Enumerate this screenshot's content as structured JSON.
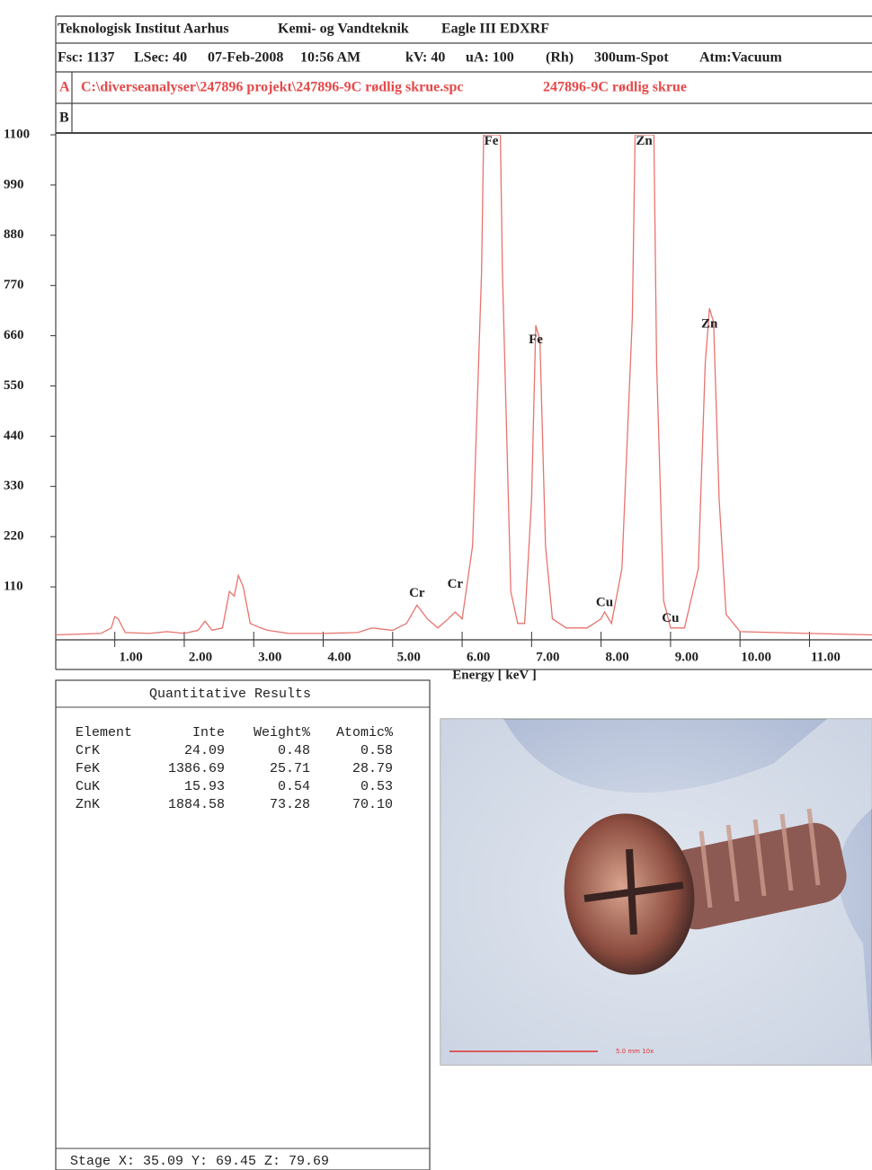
{
  "header": {
    "row1": [
      "Teknologisk Institut Aarhus",
      "Kemi- og Vandteknik",
      "Eagle III EDXRF"
    ],
    "row2": [
      "Fsc: 1137",
      "LSec: 40",
      "07-Feb-2008",
      "10:56 AM",
      "kV: 40",
      "uA: 100",
      "(Rh)",
      "300um-Spot",
      "Atm:Vacuum"
    ],
    "row3": {
      "tag": "A",
      "file": "C:\\diverseanalyser\\247896 projekt\\247896-9C rødlig skrue.spc",
      "sample": "247896-9C rødlig skrue"
    },
    "row4": {
      "tag": "B"
    }
  },
  "chart_data": {
    "type": "line",
    "x_label": "Energy [ keV ]",
    "color": "#e8736e",
    "x": [
      0.15,
      0.8,
      0.95,
      1.0,
      1.05,
      1.15,
      1.5,
      1.75,
      2.0,
      2.2,
      2.3,
      2.4,
      2.55,
      2.65,
      2.72,
      2.78,
      2.85,
      2.95,
      3.1,
      3.2,
      3.5,
      4.0,
      4.5,
      4.7,
      5.0,
      5.2,
      5.35,
      5.5,
      5.65,
      5.8,
      5.9,
      6.0,
      6.15,
      6.28,
      6.31,
      6.55,
      6.58,
      6.7,
      6.8,
      6.9,
      7.0,
      7.06,
      7.12,
      7.2,
      7.3,
      7.5,
      7.8,
      8.0,
      8.05,
      8.15,
      8.3,
      8.45,
      8.49,
      8.76,
      8.8,
      8.9,
      9.0,
      9.2,
      9.4,
      9.5,
      9.56,
      9.62,
      9.7,
      9.8,
      10.0,
      11.0,
      11.9
    ],
    "values": [
      5,
      8,
      20,
      45,
      40,
      10,
      8,
      12,
      8,
      15,
      35,
      15,
      20,
      100,
      90,
      135,
      110,
      30,
      20,
      15,
      8,
      8,
      10,
      20,
      15,
      30,
      70,
      40,
      20,
      40,
      55,
      40,
      200,
      800,
      1100,
      1100,
      800,
      100,
      30,
      30,
      300,
      683,
      650,
      200,
      40,
      20,
      20,
      40,
      55,
      30,
      150,
      700,
      1100,
      1100,
      600,
      80,
      20,
      20,
      150,
      600,
      720,
      690,
      300,
      50,
      12,
      8,
      5
    ],
    "xlim": [
      0.15,
      11.9
    ],
    "xticks": [
      {
        "value": 1,
        "label": "1.00"
      },
      {
        "value": 2,
        "label": "2.00"
      },
      {
        "value": 3,
        "label": "3.00"
      },
      {
        "value": 4,
        "label": "4.00"
      },
      {
        "value": 5,
        "label": "5.00"
      },
      {
        "value": 6,
        "label": "6.00"
      },
      {
        "value": 7,
        "label": "7.00"
      },
      {
        "value": 8,
        "label": "8.00"
      },
      {
        "value": 9,
        "label": "9.00"
      },
      {
        "value": 10,
        "label": "10.00"
      },
      {
        "value": 11,
        "label": "11.00"
      }
    ],
    "ylim": [
      0,
      1100
    ],
    "yticks": [
      110,
      220,
      330,
      440,
      550,
      660,
      770,
      880,
      990,
      1100
    ],
    "annotations": [
      {
        "text": "Cr",
        "x": 5.35,
        "y": 95
      },
      {
        "text": "Cr",
        "x": 5.9,
        "y": 115
      },
      {
        "text": "Fe",
        "x": 6.42,
        "y": 1085
      },
      {
        "text": "Fe",
        "x": 7.06,
        "y": 650
      },
      {
        "text": "Cu",
        "x": 8.05,
        "y": 75
      },
      {
        "text": "Cu",
        "x": 9.0,
        "y": 40
      },
      {
        "text": "Zn",
        "x": 8.62,
        "y": 1085
      },
      {
        "text": "Zn",
        "x": 9.56,
        "y": 685
      }
    ]
  },
  "table": {
    "title": "Quantitative Results",
    "columns": [
      "Element",
      "Inte",
      "Weight%",
      "Atomic%"
    ],
    "rows": [
      [
        "CrK",
        "24.09",
        "0.48",
        "0.58"
      ],
      [
        "FeK",
        "1386.69",
        "25.71",
        "28.79"
      ],
      [
        "CuK",
        "15.93",
        "0.54",
        "0.53"
      ],
      [
        "ZnK",
        "1884.58",
        "73.28",
        "70.10"
      ]
    ],
    "footer": "Stage X: 35.09 Y: 69.45 Z: 79.69"
  },
  "photo": {
    "scale_label": "5.0 mm 10x"
  }
}
